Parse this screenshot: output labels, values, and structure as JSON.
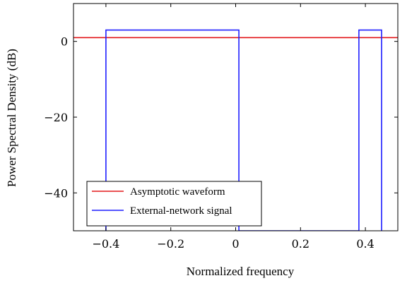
{
  "chart_data": {
    "type": "line",
    "title": "",
    "xlabel": "Normalized frequency",
    "ylabel": "Power Spectral Density (dB)",
    "xlim": [
      -0.5,
      0.5
    ],
    "ylim": [
      -50,
      10
    ],
    "xticks": [
      -0.4,
      -0.2,
      0,
      0.2,
      0.4
    ],
    "xtick_labels": [
      "−0.4",
      "−0.2",
      "0",
      "0.2",
      "0.4"
    ],
    "yticks": [
      -40,
      -20,
      0
    ],
    "ytick_labels": [
      "−40",
      "−20",
      "0"
    ],
    "grid": false,
    "legend_position": "bottom-left",
    "series": [
      {
        "name": "Asymptotic waveform",
        "color": "#e31a1c",
        "x": [
          -0.5,
          0.5
        ],
        "y": [
          1,
          1
        ]
      },
      {
        "name": "External-network signal",
        "color": "#1f1fff",
        "x": [
          -0.4,
          -0.4,
          0.01,
          0.01,
          0.38,
          0.38,
          0.45,
          0.45
        ],
        "y": [
          -50,
          3,
          3,
          -50,
          -50,
          3,
          3,
          -50
        ]
      }
    ]
  }
}
